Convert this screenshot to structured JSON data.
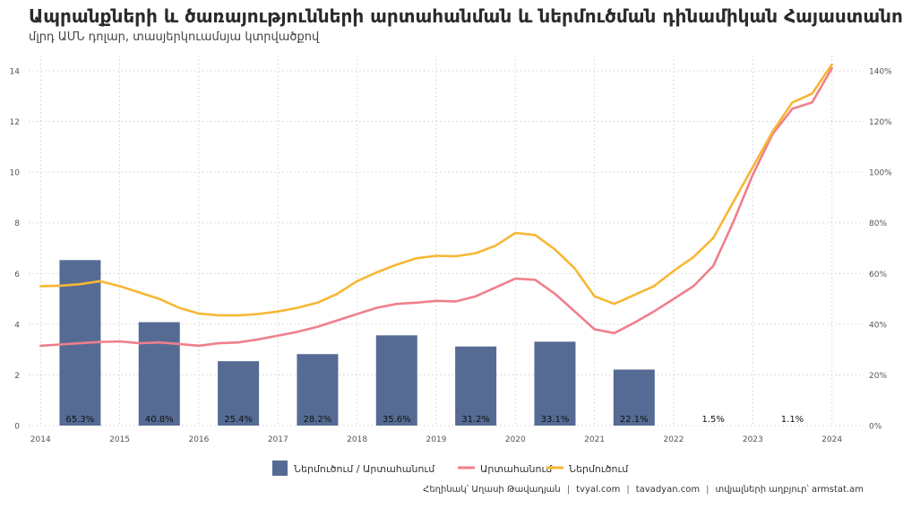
{
  "chart_data": {
    "type": "bar+line",
    "title": "Ապրանքների և ծառայությունների արտահանման և ներմուծման դինամիկան Հայաստանում",
    "subtitle": "մլրդ ԱՄՆ դոլար, տասյերկուամսյա կտրվածքով",
    "x_ticks": [
      "2014",
      "2015",
      "2016",
      "2017",
      "2018",
      "2019",
      "2020",
      "2021",
      "2022",
      "2023",
      "2024"
    ],
    "y_left_ticks": [
      "0",
      "2",
      "4",
      "6",
      "8",
      "10",
      "12",
      "14"
    ],
    "y_right_ticks": [
      "0%",
      "20%",
      "40%",
      "60%",
      "80%",
      "100%",
      "120%",
      "140%"
    ],
    "y_left_range": [
      0,
      14.6
    ],
    "y_right_range": [
      0,
      146
    ],
    "x_range": [
      2013.85,
      2024.4
    ],
    "grid": true,
    "legend_position": "bottom",
    "bars": {
      "name": "Ներմուծում / Արտահանում",
      "color": "#556b93",
      "x": [
        2014.5,
        2015.5,
        2016.5,
        2017.5,
        2018.5,
        2019.5,
        2020.5,
        2021.5,
        2022.5,
        2023.5
      ],
      "values": [
        65.3,
        40.8,
        25.4,
        28.2,
        35.6,
        31.2,
        33.1,
        22.1,
        1.5,
        1.1
      ],
      "labels": [
        "65.3%",
        "40.8%",
        "25.4%",
        "28.2%",
        "35.6%",
        "31.2%",
        "33.1%",
        "22.1%",
        "1.5%",
        "1.1%"
      ]
    },
    "series": [
      {
        "name": "Արտահանում",
        "color": "#ef7f8c",
        "x": [
          2014.0,
          2014.25,
          2014.5,
          2014.75,
          2015.0,
          2015.25,
          2015.5,
          2015.75,
          2016.0,
          2016.25,
          2016.5,
          2016.75,
          2017.0,
          2017.25,
          2017.5,
          2017.75,
          2018.0,
          2018.25,
          2018.5,
          2018.75,
          2019.0,
          2019.25,
          2019.5,
          2019.75,
          2020.0,
          2020.25,
          2020.5,
          2020.75,
          2021.0,
          2021.25,
          2021.5,
          2021.75,
          2022.0,
          2022.25,
          2022.5,
          2022.75,
          2023.0,
          2023.25,
          2023.5,
          2023.75,
          2024.0
        ],
        "values": [
          3.15,
          3.2,
          3.25,
          3.3,
          3.32,
          3.25,
          3.28,
          3.22,
          3.15,
          3.25,
          3.28,
          3.4,
          3.55,
          3.7,
          3.9,
          4.15,
          4.4,
          4.65,
          4.8,
          4.85,
          4.92,
          4.9,
          5.1,
          5.45,
          5.8,
          5.75,
          5.2,
          4.5,
          3.8,
          3.65,
          4.05,
          4.5,
          5.0,
          5.5,
          6.3,
          8.0,
          9.9,
          11.5,
          12.5,
          12.75,
          14.1
        ]
      },
      {
        "name": "Ներմուծում",
        "color": "#f7b733",
        "x": [
          2014.0,
          2014.25,
          2014.5,
          2014.75,
          2015.0,
          2015.25,
          2015.5,
          2015.75,
          2016.0,
          2016.25,
          2016.5,
          2016.75,
          2017.0,
          2017.25,
          2017.5,
          2017.75,
          2018.0,
          2018.25,
          2018.5,
          2018.75,
          2019.0,
          2019.25,
          2019.5,
          2019.75,
          2020.0,
          2020.25,
          2020.5,
          2020.75,
          2021.0,
          2021.25,
          2021.5,
          2021.75,
          2022.0,
          2022.25,
          2022.5,
          2022.75,
          2023.0,
          2023.25,
          2023.5,
          2023.75,
          2024.0
        ],
        "values": [
          5.5,
          5.52,
          5.58,
          5.7,
          5.5,
          5.25,
          5.0,
          4.65,
          4.42,
          4.35,
          4.35,
          4.4,
          4.5,
          4.65,
          4.85,
          5.2,
          5.7,
          6.05,
          6.35,
          6.6,
          6.7,
          6.68,
          6.8,
          7.1,
          7.6,
          7.52,
          6.95,
          6.2,
          5.1,
          4.8,
          5.15,
          5.5,
          6.1,
          6.65,
          7.4,
          8.8,
          10.2,
          11.6,
          12.75,
          13.1,
          14.25
        ]
      }
    ]
  },
  "legend": {
    "bar_label": "Ներմուծում / Արտահանում",
    "export_label": "Արտահանում",
    "import_label": "Ներմուծում"
  },
  "caption": {
    "author": "Հեղինակ՝ Աղասի Թավադյան",
    "site1": "tvyal.com",
    "site2": "tavadyan.com",
    "source": "տվյալների աղբյուր՝ armstat.am",
    "separator": "|"
  }
}
